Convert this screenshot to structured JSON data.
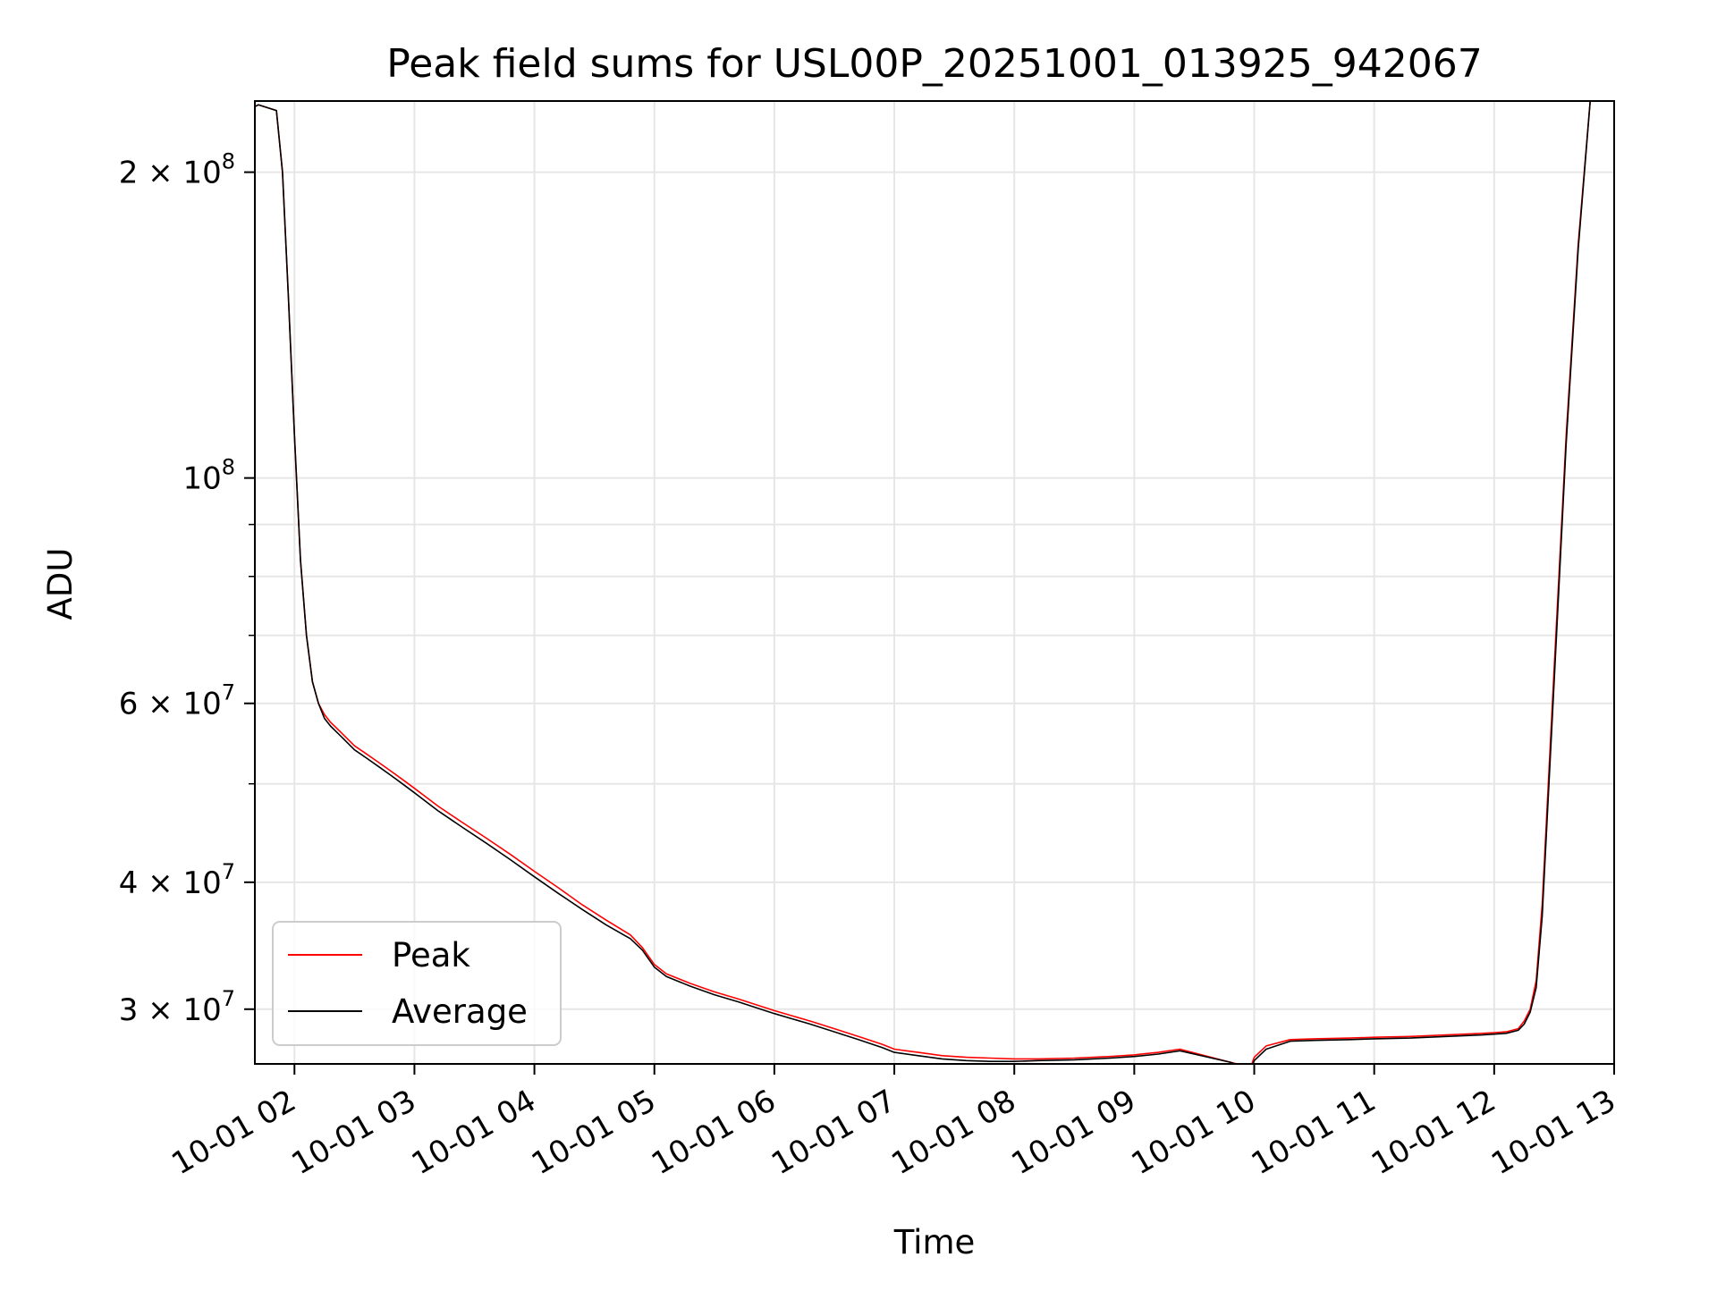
{
  "chart_data": {
    "type": "line",
    "title": "Peak field sums for USL00P_20251001_013925_942067",
    "xlabel": "Time",
    "ylabel": "ADU",
    "yscale": "log",
    "xlim": [
      1.67,
      13.0
    ],
    "ylim": [
      26500000,
      235000000
    ],
    "grid": true,
    "legend_position": "lower-left",
    "x_ticks": [
      {
        "value": 2,
        "label": "10-01 02"
      },
      {
        "value": 3,
        "label": "10-01 03"
      },
      {
        "value": 4,
        "label": "10-01 04"
      },
      {
        "value": 5,
        "label": "10-01 05"
      },
      {
        "value": 6,
        "label": "10-01 06"
      },
      {
        "value": 7,
        "label": "10-01 07"
      },
      {
        "value": 8,
        "label": "10-01 08"
      },
      {
        "value": 9,
        "label": "10-01 09"
      },
      {
        "value": 10,
        "label": "10-01 10"
      },
      {
        "value": 11,
        "label": "10-01 11"
      },
      {
        "value": 12,
        "label": "10-01 12"
      },
      {
        "value": 13,
        "label": "10-01 13"
      }
    ],
    "y_ticks": [
      {
        "value": 30000000,
        "mantissa": "3",
        "exponent": "7"
      },
      {
        "value": 40000000,
        "mantissa": "4",
        "exponent": "7"
      },
      {
        "value": 60000000,
        "mantissa": "6",
        "exponent": "7"
      },
      {
        "value": 100000000,
        "mantissa": "",
        "exponent": "8"
      },
      {
        "value": 200000000,
        "mantissa": "2",
        "exponent": "8"
      }
    ],
    "y_minor_ticks": [
      50000000,
      70000000,
      80000000,
      90000000
    ],
    "series": [
      {
        "name": "Peak",
        "color": "#ff0000",
        "x": [
          1.67,
          1.7,
          1.85,
          1.9,
          1.95,
          2.0,
          2.05,
          2.1,
          2.15,
          2.2,
          2.25,
          2.3,
          2.4,
          2.5,
          2.6,
          2.7,
          2.8,
          2.9,
          3.0,
          3.2,
          3.4,
          3.6,
          3.8,
          4.0,
          4.2,
          4.4,
          4.6,
          4.8,
          4.9,
          5.0,
          5.1,
          5.3,
          5.5,
          5.7,
          6.0,
          6.3,
          6.5,
          6.7,
          6.9,
          7.0,
          7.2,
          7.4,
          7.6,
          7.8,
          8.0,
          8.2,
          8.5,
          8.8,
          9.0,
          9.2,
          9.38,
          9.8,
          9.97,
          10.0,
          10.1,
          10.3,
          10.5,
          10.8,
          11.0,
          11.3,
          11.6,
          11.9,
          12.0,
          12.1,
          12.2,
          12.25,
          12.3,
          12.35,
          12.4,
          12.5,
          12.6,
          12.7,
          12.8
        ],
        "y": [
          232000000,
          233000000,
          230000000,
          200000000,
          150000000,
          110000000,
          83000000,
          70000000,
          63000000,
          60000000,
          58500000,
          57500000,
          56000000,
          54500000,
          53500000,
          52500000,
          51500000,
          50500000,
          49500000,
          47500000,
          45800000,
          44200000,
          42600000,
          41000000,
          39500000,
          38000000,
          36700000,
          35500000,
          34500000,
          33200000,
          32500000,
          31800000,
          31200000,
          30700000,
          29900000,
          29200000,
          28700000,
          28200000,
          27700000,
          27400000,
          27200000,
          27000000,
          26900000,
          26850000,
          26800000,
          26800000,
          26850000,
          26950000,
          27050000,
          27200000,
          27400000,
          26600000,
          26300000,
          26900000,
          27600000,
          28000000,
          28050000,
          28100000,
          28150000,
          28200000,
          28300000,
          28400000,
          28450000,
          28500000,
          28700000,
          29200000,
          30000000,
          32000000,
          38000000,
          65000000,
          110000000,
          170000000,
          235000000
        ]
      },
      {
        "name": "Average",
        "color": "#000000",
        "x": [
          1.67,
          1.7,
          1.85,
          1.9,
          1.95,
          2.0,
          2.05,
          2.1,
          2.15,
          2.2,
          2.25,
          2.3,
          2.4,
          2.5,
          2.6,
          2.7,
          2.8,
          2.9,
          3.0,
          3.2,
          3.4,
          3.6,
          3.8,
          4.0,
          4.2,
          4.4,
          4.6,
          4.8,
          4.9,
          5.0,
          5.1,
          5.3,
          5.5,
          5.7,
          6.0,
          6.3,
          6.5,
          6.7,
          6.9,
          7.0,
          7.2,
          7.4,
          7.6,
          7.8,
          8.0,
          8.2,
          8.5,
          8.8,
          9.0,
          9.2,
          9.38,
          9.8,
          9.97,
          10.0,
          10.1,
          10.3,
          10.5,
          10.8,
          11.0,
          11.3,
          11.6,
          11.9,
          12.0,
          12.1,
          12.2,
          12.25,
          12.3,
          12.35,
          12.4,
          12.5,
          12.6,
          12.7,
          12.8
        ],
        "y": [
          232000000,
          233000000,
          230000000,
          200000000,
          150000000,
          110000000,
          83000000,
          70000000,
          63000000,
          60000000,
          58000000,
          57000000,
          55500000,
          54000000,
          53000000,
          52000000,
          51000000,
          50000000,
          49000000,
          47000000,
          45300000,
          43700000,
          42100000,
          40500000,
          39000000,
          37600000,
          36300000,
          35200000,
          34300000,
          33000000,
          32300000,
          31600000,
          31000000,
          30500000,
          29700000,
          29000000,
          28500000,
          28000000,
          27500000,
          27200000,
          27000000,
          26800000,
          26700000,
          26650000,
          26650000,
          26700000,
          26750000,
          26850000,
          26950000,
          27100000,
          27300000,
          26600000,
          26100000,
          26700000,
          27400000,
          27900000,
          27950000,
          28000000,
          28050000,
          28100000,
          28200000,
          28300000,
          28350000,
          28400000,
          28600000,
          29000000,
          29800000,
          31500000,
          37000000,
          63000000,
          108000000,
          168000000,
          235000000
        ]
      }
    ]
  }
}
